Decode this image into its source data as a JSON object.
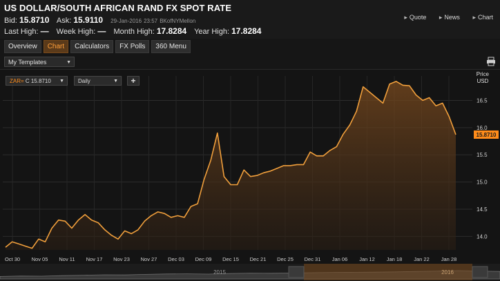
{
  "header": {
    "title": "US DOLLAR/SOUTH AFRICAN RAND FX SPOT RATE",
    "bid_label": "Bid:",
    "bid_value": "15.8710",
    "ask_label": "Ask:",
    "ask_value": "15.9110",
    "timestamp": "29-Jan-2016",
    "time": "23:57",
    "source": "BKofNYMellon",
    "last_high_label": "Last High:",
    "last_high_value": "—",
    "week_high_label": "Week High:",
    "week_high_value": "—",
    "month_high_label": "Month High:",
    "month_high_value": "17.8284",
    "year_high_label": "Year High:",
    "year_high_value": "17.8284"
  },
  "links": {
    "quote": "Quote",
    "news": "News",
    "chart": "Chart"
  },
  "tabs": [
    {
      "label": "Overview",
      "active": false
    },
    {
      "label": "Chart",
      "active": true
    },
    {
      "label": "Calculators",
      "active": false
    },
    {
      "label": "FX Polls",
      "active": false
    },
    {
      "label": "360 Menu",
      "active": false
    }
  ],
  "templates": {
    "label": "My Templates"
  },
  "chart_controls": {
    "symbol": "ZAR=",
    "symbol_suffix": "C 15.8710",
    "interval": "Daily",
    "add": "+"
  },
  "colors": {
    "accent": "#ff8c1a",
    "line": "#f2a03c",
    "background": "#161616",
    "grid": "#2e2e2e"
  },
  "chart_data": {
    "type": "area",
    "ylabel": "Price",
    "yunit": "USD",
    "ylim": [
      13.75,
      16.95
    ],
    "yticks": [
      "14.0",
      "14.5",
      "15.0",
      "15.5",
      "16.0",
      "16.5"
    ],
    "last_value": "15.8710",
    "xticks": [
      "Oct 30",
      "Nov 05",
      "Nov 11",
      "Nov 17",
      "Nov 23",
      "Nov 27",
      "Dec 03",
      "Dec 09",
      "Dec 15",
      "Dec 21",
      "Dec 25",
      "Dec 31",
      "Jan 06",
      "Jan 12",
      "Jan 18",
      "Jan 22",
      "Jan 28"
    ],
    "values": [
      13.8,
      13.9,
      13.86,
      13.82,
      13.78,
      13.95,
      13.9,
      14.15,
      14.3,
      14.28,
      14.15,
      14.3,
      14.4,
      14.3,
      14.25,
      14.12,
      14.02,
      13.95,
      14.1,
      14.05,
      14.12,
      14.28,
      14.38,
      14.45,
      14.42,
      14.35,
      14.38,
      14.35,
      14.55,
      14.6,
      15.05,
      15.4,
      15.9,
      15.1,
      14.95,
      14.95,
      15.22,
      15.1,
      15.12,
      15.17,
      15.2,
      15.25,
      15.3,
      15.3,
      15.32,
      15.32,
      15.55,
      15.48,
      15.48,
      15.58,
      15.65,
      15.88,
      16.05,
      16.3,
      16.75,
      16.65,
      16.55,
      16.45,
      16.8,
      16.85,
      16.78,
      16.77,
      16.6,
      16.5,
      16.55,
      16.4,
      16.45,
      16.2,
      15.871
    ],
    "navigator": {
      "labels": [
        "2015",
        "2016"
      ]
    }
  }
}
